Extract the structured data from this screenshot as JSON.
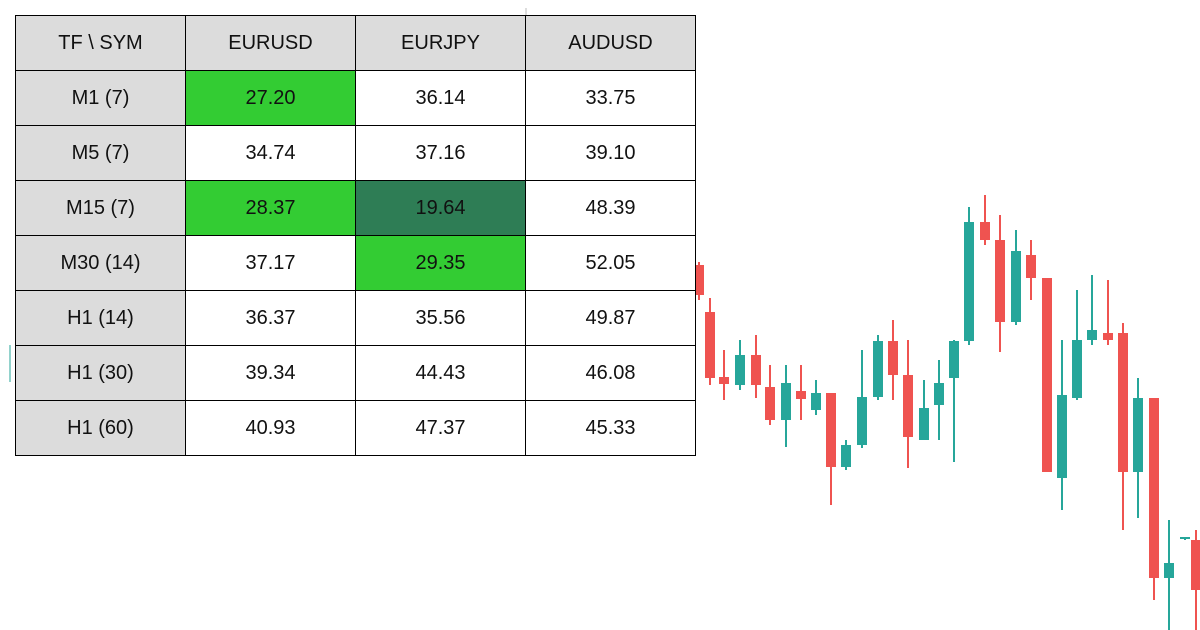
{
  "table": {
    "header": [
      "TF \\ SYM",
      "EURUSD",
      "EURJPY",
      "AUDUSD"
    ],
    "rows": [
      [
        "M1 (7)",
        "27.20",
        "36.14",
        "33.75"
      ],
      [
        "M5 (7)",
        "34.74",
        "37.16",
        "39.10"
      ],
      [
        "M15 (7)",
        "28.37",
        "19.64",
        "48.39"
      ],
      [
        "M30 (14)",
        "37.17",
        "29.35",
        "52.05"
      ],
      [
        "H1 (14)",
        "36.37",
        "35.56",
        "49.87"
      ],
      [
        "H1 (30)",
        "39.34",
        "44.43",
        "46.08"
      ],
      [
        "H1 (60)",
        "40.93",
        "47.37",
        "45.33"
      ]
    ],
    "cell_colors": [
      [
        null,
        "#33cc33",
        null,
        null
      ],
      [
        null,
        null,
        null,
        null
      ],
      [
        null,
        "#33cc33",
        "#2e7d55",
        null
      ],
      [
        null,
        null,
        "#33cc33",
        null
      ],
      [
        null,
        null,
        null,
        null
      ],
      [
        null,
        null,
        null,
        null
      ],
      [
        null,
        null,
        null,
        null
      ]
    ]
  }
}
